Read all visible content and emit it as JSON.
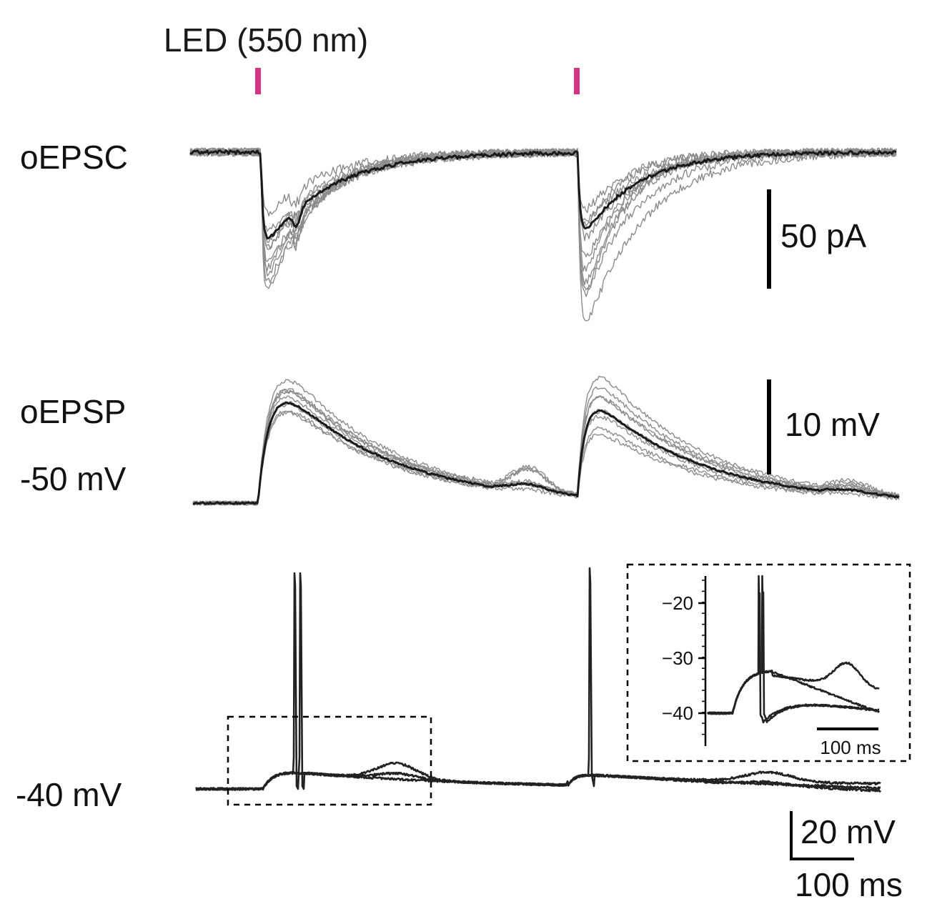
{
  "led_label": "LED (550 nm)",
  "colors": {
    "led_marker": "#d63384",
    "trial_trace": "#8c8c8c",
    "mean_trace": "#1a1a1a",
    "spike_trace": "#222222"
  },
  "panels": {
    "epsc": {
      "label": "oEPSC",
      "scale_label": "50 pA"
    },
    "epsp": {
      "label": "oEPSP",
      "hold_label": "-50 mV",
      "scale_label": "10 mV"
    },
    "spikes": {
      "hold_label": "-40 mV",
      "scale_v_label": "20 mV",
      "scale_t_label": "100 ms"
    }
  },
  "inset": {
    "y_ticks": [
      "−20",
      "−30",
      "−40"
    ],
    "scale_label": "100 ms"
  },
  "chart_data": [
    {
      "type": "line",
      "name_shown": "oEPSC",
      "units": "pA",
      "stimuli_ms": [
        0,
        500
      ],
      "scale_bar": "50 pA",
      "trial_count_estimate": 10
    },
    {
      "type": "line",
      "name_shown": "oEPSP",
      "units": "mV",
      "holding": "-50 mV",
      "stimuli_ms": [
        0,
        500
      ],
      "scale_bar": "10 mV",
      "peak_amplitude_mV_estimate": [
        13,
        10
      ]
    },
    {
      "type": "line",
      "holding": "-40 mV",
      "units": "mV",
      "stimuli_ms": [
        0,
        500
      ],
      "scale_bars": [
        "20 mV",
        "100 ms"
      ]
    },
    {
      "type": "line",
      "inset": true,
      "y_ticks": [
        -20,
        -30,
        -40
      ],
      "scale_bar": "100 ms"
    }
  ]
}
